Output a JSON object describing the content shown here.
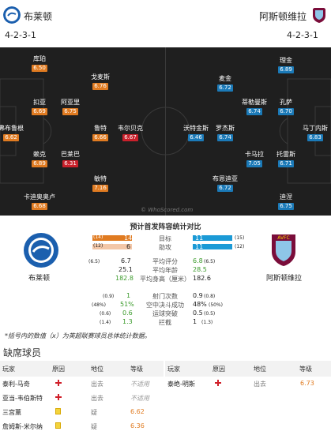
{
  "home": {
    "name": "布莱顿",
    "formation": "4-2-3-1",
    "color": "#1b5fae"
  },
  "away": {
    "name": "阿斯顿维拉",
    "formation": "4-2-3-1",
    "color": "#7a0d3a"
  },
  "players": [
    {
      "name": "库珀",
      "rating": "6.50",
      "cls": "o"
    },
    {
      "name": "戈麦斯",
      "rating": "6.76",
      "cls": "o"
    },
    {
      "name": "扣亚",
      "rating": "6.69",
      "cls": "o"
    },
    {
      "name": "阿亚里",
      "rating": "6.75",
      "cls": "o"
    },
    {
      "name": "弗布鲁根",
      "rating": "6.62",
      "cls": "o"
    },
    {
      "name": "鲁特",
      "rating": "6.66",
      "cls": "o"
    },
    {
      "name": "韦尔贝克",
      "rating": "6.67",
      "cls": "r"
    },
    {
      "name": "赖克",
      "rating": "6.89",
      "cls": "o"
    },
    {
      "name": "巴莱巴",
      "rating": "6.31",
      "cls": "r"
    },
    {
      "name": "敏特",
      "rating": "7.16",
      "cls": "o"
    },
    {
      "name": "卡迪奥奥卢",
      "rating": "6.68",
      "cls": "o"
    },
    {
      "name": "理金",
      "rating": "6.89",
      "cls": "b"
    },
    {
      "name": "麦金",
      "rating": "6.72",
      "cls": "b"
    },
    {
      "name": "蒂勒曼斯",
      "rating": "6.74",
      "cls": "b"
    },
    {
      "name": "孔萨",
      "rating": "6.70",
      "cls": "b"
    },
    {
      "name": "沃特金斯",
      "rating": "6.46",
      "cls": "b"
    },
    {
      "name": "罗杰斯",
      "rating": "6.74",
      "cls": "b"
    },
    {
      "name": "马丁内斯",
      "rating": "6.83",
      "cls": "b"
    },
    {
      "name": "卡马拉",
      "rating": "7.05",
      "cls": "b"
    },
    {
      "name": "托雷斯",
      "rating": "6.71",
      "cls": "b"
    },
    {
      "name": "布恩迪亚",
      "rating": "6.72",
      "cls": "b"
    },
    {
      "name": "迪涅",
      "rating": "6.75",
      "cls": "b"
    }
  ],
  "watermark": "© WhoScored.com",
  "stats": {
    "title": "预计首发阵容统计对比",
    "home_name": "布莱顿",
    "away_name": "阿斯顿维拉",
    "rows": [
      {
        "label": "目标",
        "home": "14",
        "home_s": "(14)",
        "away": "11",
        "away_s": "(15)",
        "hp": 0.56,
        "ap": 0.44
      },
      {
        "label": "助攻",
        "home": "6",
        "home_s": "(12)",
        "away": "11",
        "away_s": "(12)",
        "hp": 0.35,
        "ap": 0.65
      },
      {
        "label": "平均评分",
        "home": "6.7",
        "home_s": "(6.5)",
        "away": "6.8",
        "away_s": "(6.5)"
      },
      {
        "label": "平均年龄",
        "home": "25.1",
        "home_s": "",
        "away": "28.5",
        "away_s": ""
      },
      {
        "label": "平均身高（厘米）",
        "home": "182.8",
        "home_s": "",
        "away": "182.6",
        "away_s": ""
      },
      {
        "label": "射门次数",
        "home": "1",
        "home_s": "(0.9)",
        "away": "0.9",
        "away_s": "(0.8)"
      },
      {
        "label": "空中决斗成功",
        "home": "51%",
        "home_s": "(48%)",
        "away": "48%",
        "away_s": "(50%)"
      },
      {
        "label": "运球突破",
        "home": "0.6",
        "home_s": "(0.6)",
        "away": "0.5",
        "away_s": "(0.5)"
      },
      {
        "label": "拦截",
        "home": "1.3",
        "home_s": "(1.4)",
        "away": "1",
        "away_s": "(1.3)"
      }
    ],
    "note": "*括号内的数值（x）为英超联赛球员总体统计数据。"
  },
  "missing": {
    "title": "缺席球员",
    "headers": {
      "player": "玩家",
      "reason": "原因",
      "pos": "地位",
      "level": "等级"
    },
    "home": [
      {
        "player": "泰利-马奇",
        "reason": "injury",
        "pos": "出去",
        "level": "不适用"
      },
      {
        "player": "亚当-韦伯斯特",
        "reason": "injury",
        "pos": "出去",
        "level": "不适用"
      },
      {
        "player": "三宫薰",
        "reason": "card",
        "pos": "疑",
        "level": "6.62"
      },
      {
        "player": "詹姆斯-米尔纳",
        "reason": "card",
        "pos": "疑",
        "level": "6.36"
      }
    ],
    "away": [
      {
        "player": "泰绝-明斯",
        "reason": "injury",
        "pos": "出去",
        "level": "6.73"
      }
    ]
  }
}
